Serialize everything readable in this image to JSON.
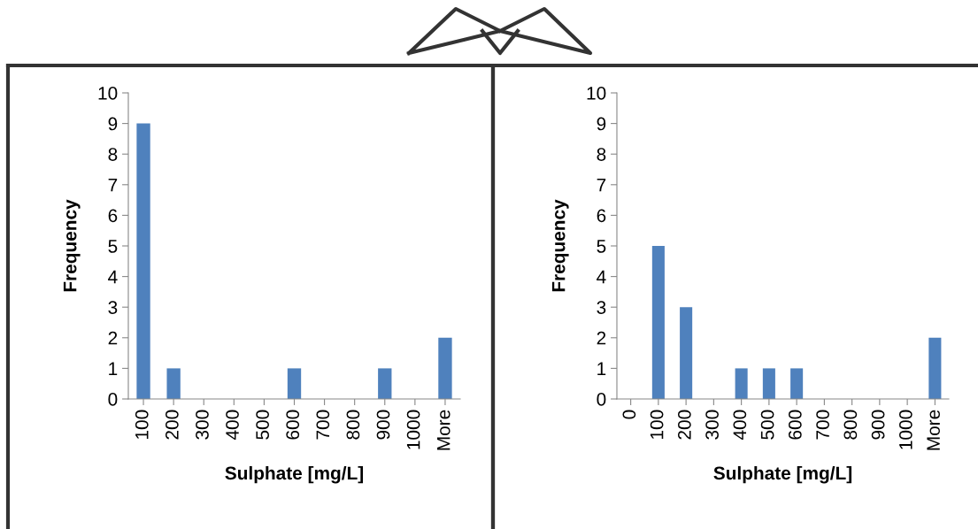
{
  "chart_data": [
    {
      "type": "bar",
      "xlabel": "Sulphate [mg/L]",
      "ylabel": "Frequency",
      "categories": [
        "100",
        "200",
        "300",
        "400",
        "500",
        "600",
        "700",
        "800",
        "900",
        "1000",
        "More"
      ],
      "values": [
        9,
        1,
        0,
        0,
        0,
        1,
        0,
        0,
        1,
        0,
        2
      ],
      "color": "#4f81bd",
      "ylim": [
        0,
        10
      ],
      "yticks": [
        0,
        1,
        2,
        3,
        4,
        5,
        6,
        7,
        8,
        9,
        10
      ],
      "grid": false,
      "legend": false
    },
    {
      "type": "bar",
      "xlabel": "Sulphate [mg/L]",
      "ylabel": "Frequency",
      "categories": [
        "0",
        "100",
        "200",
        "300",
        "400",
        "500",
        "600",
        "700",
        "800",
        "900",
        "1000",
        "More"
      ],
      "values": [
        0,
        5,
        3,
        0,
        1,
        1,
        1,
        0,
        0,
        0,
        0,
        2
      ],
      "color": "#4f81bd",
      "ylim": [
        0,
        10
      ],
      "yticks": [
        0,
        1,
        2,
        3,
        4,
        5,
        6,
        7,
        8,
        9,
        10
      ],
      "grid": false,
      "legend": false
    }
  ]
}
